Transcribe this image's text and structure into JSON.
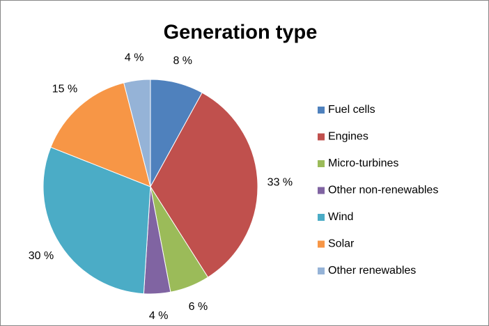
{
  "chart_data": {
    "type": "pie",
    "title": "Generation type",
    "categories": [
      "Fuel cells",
      "Engines",
      "Micro-turbines",
      "Other non-renewables",
      "Wind",
      "Solar",
      "Other renewables"
    ],
    "values": [
      8,
      33,
      6,
      4,
      30,
      15,
      4
    ],
    "value_labels": [
      "8 %",
      "33 %",
      "6 %",
      "4 %",
      "30 %",
      "15 %",
      "4 %"
    ],
    "colors": [
      "#4f81bd",
      "#c0504d",
      "#9bbb59",
      "#8064a2",
      "#4bacc6",
      "#f79646",
      "#95b3d7"
    ],
    "legend": "right"
  }
}
